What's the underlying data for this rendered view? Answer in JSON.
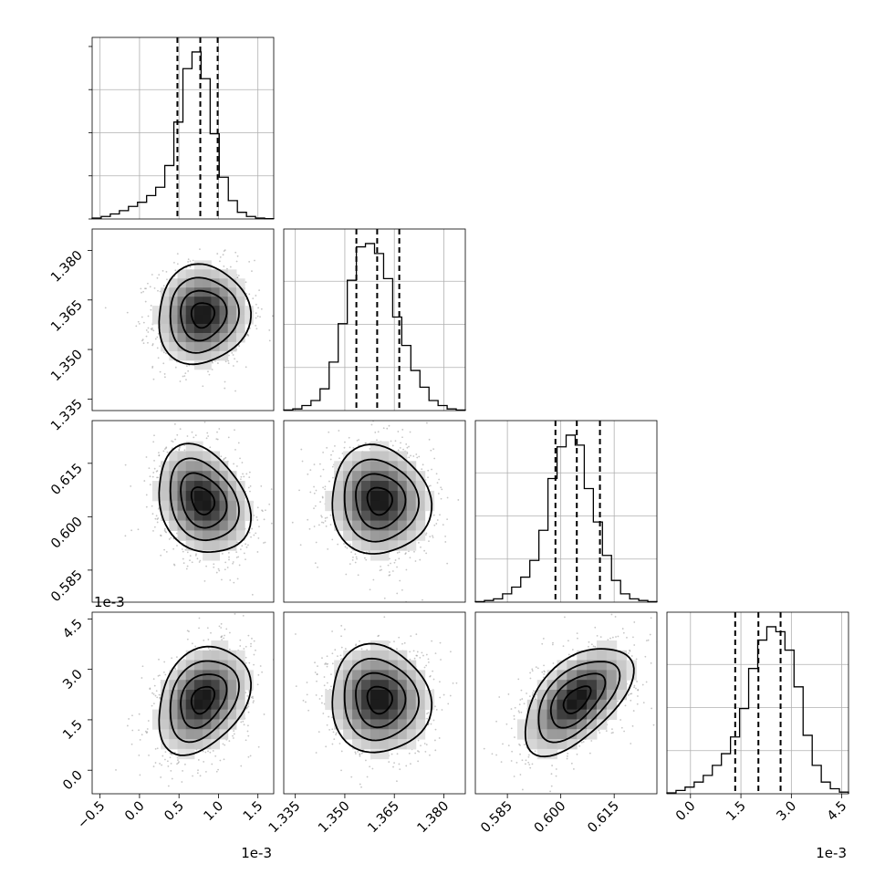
{
  "chart_data": {
    "type": "corner",
    "parameters": [
      {
        "range": [
          -0.0006,
          0.0017
        ],
        "axis_scale": "1e-3",
        "x_tick_labels": [
          "−0.5",
          "0.0",
          "0.5",
          "1.0",
          "1.5"
        ],
        "x_tick_values": [
          -0.0005,
          0.0,
          0.0005,
          0.001,
          0.0015
        ],
        "y_tick_labels": [],
        "y_tick_values": [],
        "quantiles": [
          0.00048,
          0.00077,
          0.00099
        ],
        "histogram": [
          0.5,
          1.5,
          3,
          5,
          7.5,
          10,
          14,
          19,
          32,
          58,
          90,
          100,
          84,
          51,
          25,
          11,
          4,
          1.5,
          0.5,
          0.2
        ]
      },
      {
        "range": [
          1.3315,
          1.3865
        ],
        "axis_scale": "",
        "x_tick_labels": [
          "1.335",
          "1.350",
          "1.365",
          "1.380"
        ],
        "x_tick_values": [
          1.335,
          1.35,
          1.365,
          1.38
        ],
        "y_tick_labels": [
          "1.335",
          "1.350",
          "1.365",
          "1.380"
        ],
        "y_tick_values": [
          1.335,
          1.35,
          1.365,
          1.38
        ],
        "quantiles": [
          1.3535,
          1.3598,
          1.3665
        ],
        "histogram": [
          0.3,
          1,
          3,
          6,
          13,
          29,
          52,
          78,
          98,
          100,
          94,
          79,
          56,
          39,
          24,
          14,
          6,
          3,
          1,
          0.3
        ]
      },
      {
        "range": [
          0.576,
          0.627
        ],
        "axis_scale": "",
        "x_tick_labels": [
          "0.585",
          "0.600",
          "0.615"
        ],
        "x_tick_values": [
          0.585,
          0.6,
          0.615
        ],
        "y_tick_labels": [
          "0.585",
          "0.600",
          "0.615"
        ],
        "y_tick_values": [
          0.585,
          0.6,
          0.615
        ],
        "quantiles": [
          0.5985,
          0.6045,
          0.611
        ],
        "histogram": [
          0.3,
          1,
          2,
          5,
          9,
          15,
          25,
          43,
          74,
          93,
          100,
          94,
          68,
          48,
          28,
          13,
          5,
          2,
          1,
          0.3
        ]
      },
      {
        "range": [
          -0.0007,
          0.0047
        ],
        "axis_scale": "1e-3",
        "x_tick_labels": [
          "0.0",
          "1.5",
          "3.0",
          "4.5"
        ],
        "x_tick_values": [
          0.0,
          0.0015,
          0.003,
          0.0045
        ],
        "y_tick_labels": [
          "0.0",
          "1.5",
          "3.0",
          "4.5"
        ],
        "y_tick_values": [
          0.0,
          0.0015,
          0.003,
          0.0045
        ],
        "quantiles": [
          0.00133,
          0.00202,
          0.00268
        ],
        "histogram": [
          0.5,
          2,
          4,
          7,
          11,
          17,
          24,
          34,
          51,
          75,
          92,
          100,
          97,
          86,
          64,
          35,
          17,
          7,
          3,
          1
        ]
      }
    ],
    "pairs": [
      {
        "row": 1,
        "col": 0,
        "mean": [
          0.0008,
          1.3605
        ],
        "sd": [
          0.00029,
          0.0075
        ],
        "rho": 0.05
      },
      {
        "row": 2,
        "col": 0,
        "mean": [
          0.0008,
          0.6045
        ],
        "sd": [
          0.00029,
          0.0076
        ],
        "rho": -0.25
      },
      {
        "row": 2,
        "col": 1,
        "mean": [
          1.3605,
          0.6045
        ],
        "sd": [
          0.0075,
          0.0076
        ],
        "rho": -0.05
      },
      {
        "row": 3,
        "col": 0,
        "mean": [
          0.0008,
          0.0021
        ],
        "sd": [
          0.00029,
          0.0008
        ],
        "rho": 0.3
      },
      {
        "row": 3,
        "col": 1,
        "mean": [
          1.3605,
          0.0021
        ],
        "sd": [
          0.0075,
          0.0008
        ],
        "rho": -0.05
      },
      {
        "row": 3,
        "col": 2,
        "mean": [
          0.6045,
          0.0021
        ],
        "sd": [
          0.0076,
          0.0008
        ],
        "rho": 0.55
      }
    ],
    "grid": true,
    "contour_levels_sigma": [
      0.5,
      1.0,
      1.5,
      2.0
    ],
    "colors": {
      "line": "#000000",
      "grid": "#b0b0b0",
      "scatter": "#808080",
      "density_max": "#000000"
    }
  }
}
